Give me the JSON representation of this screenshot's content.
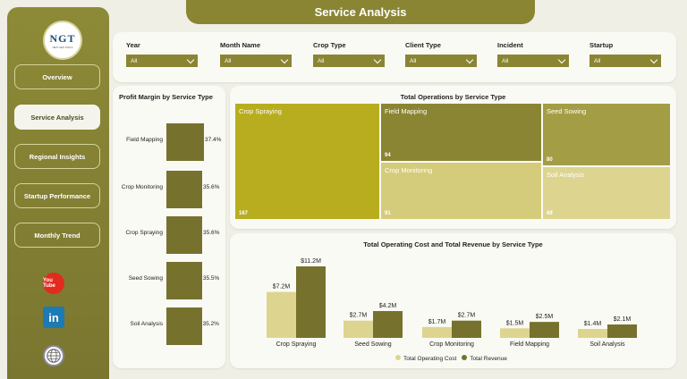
{
  "header": {
    "title": "Service Analysis"
  },
  "logo": {
    "text": "NGT",
    "tagline": "NEXT GEN TOOLS"
  },
  "sidebar": {
    "items": [
      {
        "label": "Overview",
        "active": false
      },
      {
        "label": "Service Analysis",
        "active": true
      },
      {
        "label": "Regional Insights",
        "active": false
      },
      {
        "label": "Startup Performance",
        "active": false
      },
      {
        "label": "Monthly Trend",
        "active": false
      }
    ],
    "social": [
      {
        "icon": "youtube-icon",
        "text": "You Tube"
      },
      {
        "icon": "linkedin-icon",
        "text": "in"
      },
      {
        "icon": "globe-icon",
        "text": ""
      }
    ]
  },
  "filters": [
    {
      "label": "Year",
      "value": "All"
    },
    {
      "label": "Month Name",
      "value": "All"
    },
    {
      "label": "Crop Type",
      "value": "All"
    },
    {
      "label": "Client Type",
      "value": "All"
    },
    {
      "label": "Incident",
      "value": "All"
    },
    {
      "label": "Startup",
      "value": "All"
    }
  ],
  "colors": {
    "olive": "#8a8533",
    "dark_olive": "#76722e",
    "mustard": "#b8ad1f",
    "light_olive": "#d4cc7a",
    "pale": "#e0d99a"
  },
  "profit_margin": {
    "title": "Profit Margin by Service Type",
    "rows": [
      {
        "category": "Field Mapping",
        "value": 37.4,
        "label": "37.4%"
      },
      {
        "category": "Crop Monitoring",
        "value": 35.6,
        "label": "35.6%"
      },
      {
        "category": "Crop Spraying",
        "value": 35.6,
        "label": "35.6%"
      },
      {
        "category": "Seed Sowing",
        "value": 35.5,
        "label": "35.5%"
      },
      {
        "category": "Soil Analysis",
        "value": 35.2,
        "label": "35.2%"
      }
    ]
  },
  "treemap": {
    "title": "Total Operations by Service Type",
    "tiles": [
      {
        "name": "Crop Spraying",
        "value": "167",
        "color": "#b8ad1f"
      },
      {
        "name": "Field Mapping",
        "value": "94",
        "color": "#8a8533"
      },
      {
        "name": "Seed Sowing",
        "value": "80",
        "color": "#a39e45"
      },
      {
        "name": "Crop Monitoring",
        "value": "91",
        "color": "#d4cc7a"
      },
      {
        "name": "Soil Analysis",
        "value": "68",
        "color": "#ddd58f"
      }
    ]
  },
  "chart_data": {
    "type": "bar",
    "title": "Total Operating Cost and Total Revenue by Service Type",
    "categories": [
      "Crop Spraying",
      "Seed Sowing",
      "Crop Monitoring",
      "Field Mapping",
      "Soil Analysis"
    ],
    "series": [
      {
        "name": "Total Operating Cost",
        "color": "#ddd58f",
        "values": [
          7.2,
          2.7,
          1.7,
          1.5,
          1.4
        ],
        "labels": [
          "$7.2M",
          "$2.7M",
          "$1.7M",
          "$1.5M",
          "$1.4M"
        ]
      },
      {
        "name": "Total Revenue",
        "color": "#76722e",
        "values": [
          11.2,
          4.2,
          2.7,
          2.5,
          2.1
        ],
        "labels": [
          "$11.2M",
          "$4.2M",
          "$2.7M",
          "$2.5M",
          "$2.1M"
        ]
      }
    ],
    "ylim": [
      0,
      11.2
    ],
    "legend": "bottom"
  }
}
